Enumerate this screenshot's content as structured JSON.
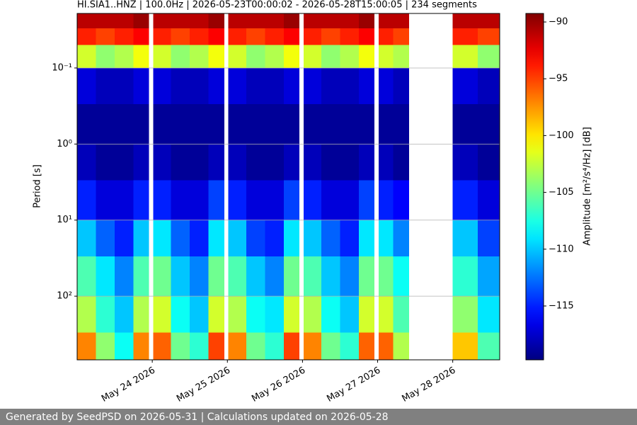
{
  "chart_data": {
    "type": "spectrogram",
    "title": "HI.SIA1..HNZ | 100.0Hz | 2026-05-23T00:00:02 - 2026-05-28T15:00:05 | 234 segments",
    "ylabel": "Period [s]",
    "colorbar_label": "Amplitude [m²/s⁴/Hz] [dB]",
    "xlim": [
      "2026-05-23T00:00:02",
      "2026-05-28T15:00:05"
    ],
    "xticks": [
      {
        "value": "2026-05-24T00:00:00",
        "label": "May 24 2026"
      },
      {
        "value": "2026-05-25T00:00:00",
        "label": "May 25 2026"
      },
      {
        "value": "2026-05-26T00:00:00",
        "label": "May 26 2026"
      },
      {
        "value": "2026-05-27T00:00:00",
        "label": "May 27 2026"
      },
      {
        "value": "2026-05-28T00:00:00",
        "label": "May 28 2026"
      }
    ],
    "ylog": true,
    "yinverted": true,
    "ylim": [
      0.0192,
      687
    ],
    "yticks": [
      {
        "value": 0.1,
        "label": "10⁻¹"
      },
      {
        "value": 1,
        "label": "10⁰"
      },
      {
        "value": 10,
        "label": "10¹"
      },
      {
        "value": 100,
        "label": "10²"
      }
    ],
    "grid": true,
    "colormap": "jet",
    "zlim": [
      -119.74,
      -89.25
    ],
    "zticks": [
      {
        "value": -90,
        "label": "−90"
      },
      {
        "value": -95,
        "label": "−95"
      },
      {
        "value": -100,
        "label": "−100"
      },
      {
        "value": -105,
        "label": "−105"
      },
      {
        "value": -110,
        "label": "−110"
      },
      {
        "value": -115,
        "label": "−115"
      }
    ],
    "period_edges": [
      0.0192,
      0.03,
      0.05,
      0.1,
      0.3,
      1,
      3,
      10,
      30,
      100,
      300,
      687
    ],
    "columns": [
      {
        "start": "2026-05-23T00:00:02",
        "end": "2026-05-23T06:00:00",
        "values": [
          -91,
          -94,
          -102,
          -117,
          -119,
          -118,
          -115,
          -110,
          -106,
          -103,
          -97
        ]
      },
      {
        "start": "2026-05-23T06:00:00",
        "end": "2026-05-23T12:00:00",
        "values": [
          -91,
          -95,
          -104,
          -118,
          -119,
          -119,
          -117,
          -113,
          -109,
          -107,
          -104
        ]
      },
      {
        "start": "2026-05-23T12:00:00",
        "end": "2026-05-23T18:00:00",
        "values": [
          -91,
          -94,
          -103,
          -118,
          -119,
          -119,
          -117,
          -115,
          -112,
          -110,
          -108
        ]
      },
      {
        "start": "2026-05-23T18:00:00",
        "end": "2026-05-23T23:00:00",
        "values": [
          -90,
          -93,
          -101,
          -117,
          -119,
          -118,
          -115,
          -110,
          -106,
          -103,
          -97
        ]
      },
      {
        "start": "2026-05-24T00:20:00",
        "end": "2026-05-24T06:00:00",
        "values": [
          -91,
          -94,
          -102,
          -117,
          -119,
          -118,
          -115,
          -109,
          -105,
          -102,
          -96
        ]
      },
      {
        "start": "2026-05-24T06:00:00",
        "end": "2026-05-24T12:00:00",
        "values": [
          -91,
          -95,
          -104,
          -118,
          -119,
          -119,
          -117,
          -113,
          -110,
          -108,
          -105
        ]
      },
      {
        "start": "2026-05-24T12:00:00",
        "end": "2026-05-24T18:00:00",
        "values": [
          -91,
          -94,
          -103,
          -118,
          -119,
          -119,
          -117,
          -115,
          -112,
          -110,
          -107
        ]
      },
      {
        "start": "2026-05-24T18:00:00",
        "end": "2026-05-24T23:00:00",
        "values": [
          -90,
          -93,
          -101,
          -117,
          -119,
          -118,
          -114,
          -109,
          -105,
          -102,
          -95
        ]
      },
      {
        "start": "2026-05-25T00:20:00",
        "end": "2026-05-25T06:00:00",
        "values": [
          -91,
          -94,
          -102,
          -117,
          -119,
          -118,
          -115,
          -110,
          -106,
          -103,
          -97
        ]
      },
      {
        "start": "2026-05-25T06:00:00",
        "end": "2026-05-25T12:00:00",
        "values": [
          -91,
          -95,
          -104,
          -118,
          -119,
          -119,
          -117,
          -114,
          -110,
          -108,
          -105
        ]
      },
      {
        "start": "2026-05-25T12:00:00",
        "end": "2026-05-25T18:00:00",
        "values": [
          -91,
          -94,
          -103,
          -118,
          -119,
          -119,
          -117,
          -115,
          -112,
          -109,
          -107
        ]
      },
      {
        "start": "2026-05-25T18:00:00",
        "end": "2026-05-25T23:00:00",
        "values": [
          -90,
          -93,
          -101,
          -117,
          -119,
          -118,
          -114,
          -109,
          -105,
          -102,
          -95
        ]
      },
      {
        "start": "2026-05-26T00:20:00",
        "end": "2026-05-26T06:00:00",
        "values": [
          -91,
          -94,
          -102,
          -117,
          -119,
          -118,
          -115,
          -110,
          -106,
          -103,
          -97
        ]
      },
      {
        "start": "2026-05-26T06:00:00",
        "end": "2026-05-26T12:00:00",
        "values": [
          -91,
          -95,
          -104,
          -118,
          -119,
          -119,
          -117,
          -113,
          -110,
          -108,
          -105
        ]
      },
      {
        "start": "2026-05-26T12:00:00",
        "end": "2026-05-26T18:00:00",
        "values": [
          -91,
          -94,
          -103,
          -118,
          -119,
          -119,
          -117,
          -115,
          -112,
          -110,
          -107
        ]
      },
      {
        "start": "2026-05-26T18:00:00",
        "end": "2026-05-26T23:00:00",
        "values": [
          -90,
          -93,
          -101,
          -117,
          -119,
          -118,
          -114,
          -109,
          -105,
          -102,
          -96
        ]
      },
      {
        "start": "2026-05-27T00:20:00",
        "end": "2026-05-27T05:00:00",
        "values": [
          -91,
          -94,
          -102,
          -117,
          -119,
          -118,
          -115,
          -109,
          -105,
          -102,
          -96
        ]
      },
      {
        "start": "2026-05-27T05:00:00",
        "end": "2026-05-27T10:00:00",
        "values": [
          -91,
          -95,
          -103,
          -118,
          -119,
          -119,
          -116,
          -112,
          -108,
          -106,
          -103
        ]
      },
      {
        "start": "2026-05-28T00:00:00",
        "end": "2026-05-28T08:00:00",
        "values": [
          -91,
          -94,
          -102,
          -117,
          -119,
          -118,
          -115,
          -110,
          -107,
          -104,
          -99
        ]
      },
      {
        "start": "2026-05-28T08:00:00",
        "end": "2026-05-28T15:00:05",
        "values": [
          -91,
          -95,
          -104,
          -118,
          -119,
          -119,
          -117,
          -114,
          -111,
          -109,
          -106
        ]
      }
    ]
  },
  "footer": {
    "text": "Generated by SeedPSD on 2026-05-31 | Calculations updated on 2026-05-28"
  }
}
